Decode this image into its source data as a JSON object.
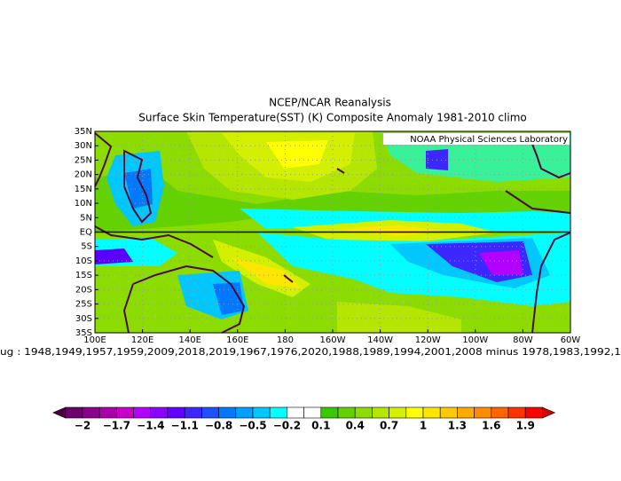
{
  "header": {
    "title": "NCEP/NCAR Reanalysis",
    "subtitle": "Surface Skin Temperature(SST) (K) Composite Anomaly 1981-2010 climo"
  },
  "map": {
    "watermark": "NOAA Physical Sciences Laboratory",
    "lat_labels": [
      "35N",
      "30N",
      "25N",
      "20N",
      "15N",
      "10N",
      "5N",
      "EQ",
      "5S",
      "10S",
      "15S",
      "20S",
      "25S",
      "30S",
      "35S"
    ],
    "lon_labels": [
      "100E",
      "120E",
      "140E",
      "160E",
      "180",
      "160W",
      "140W",
      "120W",
      "100W",
      "80W",
      "60W"
    ]
  },
  "caption": "ug : 1948,1949,1957,1959,2009,2018,2019,1967,1976,2020,1988,1989,1994,2001,2008  minus 1978,1983,1992,1",
  "colorbar": {
    "labels": [
      "−2",
      "−1.7",
      "−1.4",
      "−1.1",
      "−0.8",
      "−0.5",
      "−0.2",
      "0.1",
      "0.4",
      "0.7",
      "1",
      "1.3",
      "1.6",
      "1.9"
    ],
    "under_color": "#4a0040",
    "over_color": "#d00000",
    "colors": [
      "#6e006e",
      "#8c008c",
      "#aa00aa",
      "#c800c8",
      "#b400ff",
      "#8c00ff",
      "#6400ff",
      "#3c28ff",
      "#1e50ff",
      "#0078ff",
      "#00a0ff",
      "#00c8ff",
      "#00ffff",
      "#ffffff",
      "#ffffff",
      "#3cc800",
      "#64d200",
      "#8cdc00",
      "#b4e600",
      "#d2f000",
      "#ffff00",
      "#ffe600",
      "#ffc800",
      "#ffaa00",
      "#ff8c00",
      "#ff6400",
      "#ff3200",
      "#ff0000"
    ]
  }
}
